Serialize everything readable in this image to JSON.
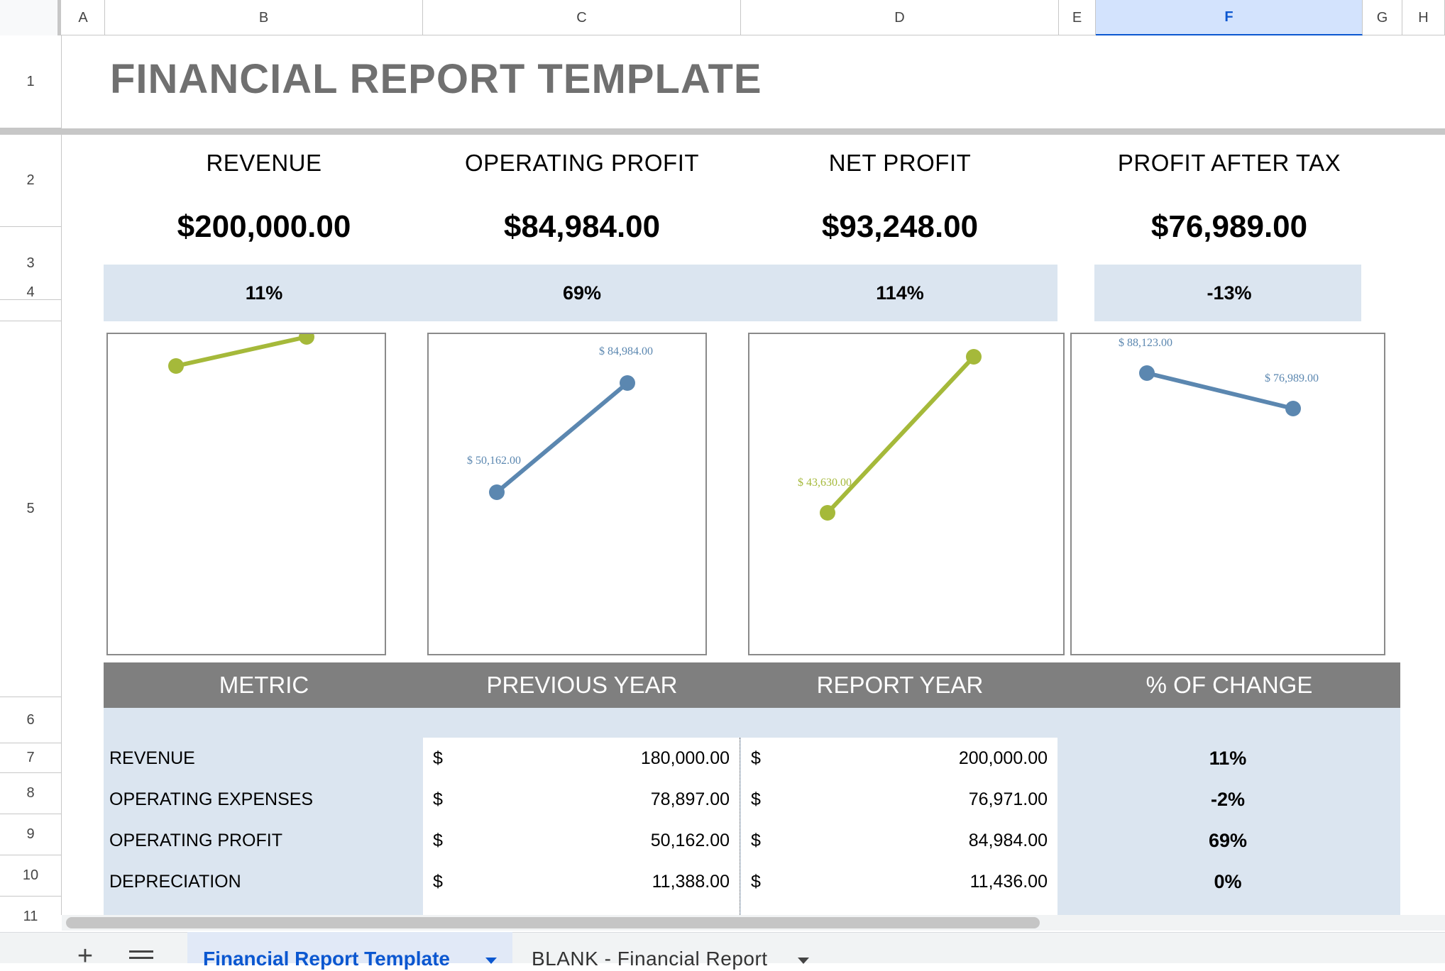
{
  "columns": [
    "A",
    "B",
    "C",
    "D",
    "E",
    "F",
    "G",
    "H"
  ],
  "selected_column": "F",
  "rows": [
    "1",
    "2",
    "3",
    "4",
    "5",
    "6",
    "7",
    "8",
    "9",
    "10",
    "11"
  ],
  "title": "FINANCIAL REPORT TEMPLATE",
  "kpis": [
    {
      "label": "REVENUE",
      "value": "$200,000.00",
      "change": "11%"
    },
    {
      "label": "OPERATING PROFIT",
      "value": "$84,984.00",
      "change": "69%"
    },
    {
      "label": "NET PROFIT",
      "value": "$93,248.00",
      "change": "114%"
    },
    {
      "label": "PROFIT AFTER TAX",
      "value": "$76,989.00",
      "change": "-13%"
    }
  ],
  "chart_data": [
    {
      "type": "line",
      "title": "",
      "series": [
        {
          "values": [
            180000,
            200000
          ]
        }
      ],
      "labels": [
        "",
        ""
      ],
      "color": "#a5b93a"
    },
    {
      "type": "line",
      "title": "",
      "series": [
        {
          "values": [
            50162,
            84984
          ]
        }
      ],
      "labels": [
        "$ 50,162.00",
        "$ 84,984.00"
      ],
      "color": "#5b87b0"
    },
    {
      "type": "line",
      "title": "",
      "series": [
        {
          "values": [
            43630,
            93248
          ]
        }
      ],
      "labels": [
        "$ 43,630.00",
        ""
      ],
      "color": "#a5b93a"
    },
    {
      "type": "line",
      "title": "",
      "series": [
        {
          "values": [
            88123,
            76989
          ]
        }
      ],
      "labels": [
        "$ 88,123.00",
        "$ 76,989.00"
      ],
      "color": "#5b87b0"
    }
  ],
  "table": {
    "headers": [
      "METRIC",
      "PREVIOUS YEAR",
      "REPORT YEAR",
      "% OF CHANGE"
    ],
    "currency_symbol": "$",
    "rows": [
      {
        "metric": "REVENUE",
        "prev": "180,000.00",
        "curr": "200,000.00",
        "change": "11%"
      },
      {
        "metric": "OPERATING EXPENSES",
        "prev": "78,897.00",
        "curr": "76,971.00",
        "change": "-2%"
      },
      {
        "metric": "OPERATING PROFIT",
        "prev": "50,162.00",
        "curr": "84,984.00",
        "change": "69%"
      },
      {
        "metric": "DEPRECIATION",
        "prev": "11,388.00",
        "curr": "11,436.00",
        "change": "0%"
      }
    ]
  },
  "sheet_tabs": {
    "add_icon": "+",
    "active": "Financial Report Template",
    "other": "BLANK - Financial Report"
  },
  "colors": {
    "accent_green": "#a5b93a",
    "accent_blue": "#5b87b0",
    "band": "#dbe5f0",
    "header_gray": "#7f7f7f"
  }
}
